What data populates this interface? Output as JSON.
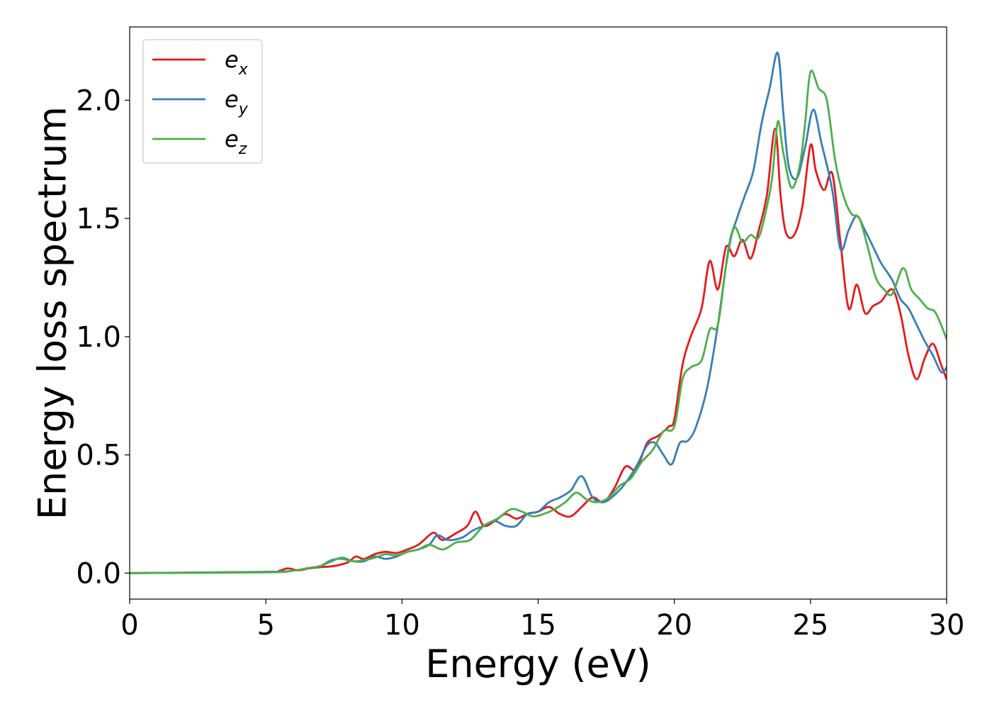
{
  "chart_data": {
    "type": "line",
    "xlabel": "Energy (eV)",
    "ylabel": "Energy loss spectrum",
    "xlim": [
      0,
      30
    ],
    "ylim": [
      -0.11,
      2.31
    ],
    "xticks": [
      0,
      5,
      10,
      15,
      20,
      25,
      30
    ],
    "xtick_labels": [
      "0",
      "5",
      "10",
      "15",
      "20",
      "25",
      "30"
    ],
    "yticks": [
      0.0,
      0.5,
      1.0,
      1.5,
      2.0
    ],
    "ytick_labels": [
      "0.0",
      "0.5",
      "1.0",
      "1.5",
      "2.0"
    ],
    "grid": false,
    "legend_position": "top-left",
    "series": [
      {
        "name": "e_x",
        "label_base": "e",
        "label_sub": "x",
        "color": "#e41a1c",
        "x": [
          0,
          5,
          5.5,
          5.8,
          6.2,
          6.6,
          7,
          7.5,
          8,
          8.3,
          8.6,
          9,
          9.4,
          9.8,
          10.2,
          10.6,
          11,
          11.2,
          11.5,
          12,
          12.4,
          12.7,
          13,
          13.4,
          13.8,
          14.2,
          14.6,
          15,
          15.4,
          15.8,
          16.2,
          16.6,
          17,
          17.4,
          17.8,
          18.2,
          18.6,
          19,
          19.4,
          19.8,
          20,
          20.3,
          20.6,
          21,
          21.3,
          21.6,
          21.9,
          22.2,
          22.5,
          22.8,
          23.1,
          23.4,
          23.7,
          23.9,
          24.1,
          24.4,
          24.7,
          25,
          25.2,
          25.5,
          25.8,
          26.1,
          26.4,
          26.7,
          27,
          27.3,
          27.6,
          28,
          28.3,
          28.6,
          28.9,
          29.2,
          29.5,
          29.8,
          30
        ],
        "y": [
          0,
          0.005,
          0.01,
          0.02,
          0.012,
          0.02,
          0.025,
          0.03,
          0.045,
          0.07,
          0.06,
          0.08,
          0.09,
          0.085,
          0.1,
          0.12,
          0.16,
          0.17,
          0.14,
          0.17,
          0.2,
          0.26,
          0.2,
          0.22,
          0.25,
          0.23,
          0.25,
          0.26,
          0.28,
          0.25,
          0.24,
          0.28,
          0.32,
          0.3,
          0.36,
          0.45,
          0.44,
          0.55,
          0.58,
          0.62,
          0.65,
          0.88,
          1.0,
          1.12,
          1.32,
          1.2,
          1.38,
          1.34,
          1.41,
          1.33,
          1.45,
          1.6,
          1.88,
          1.6,
          1.44,
          1.43,
          1.55,
          1.81,
          1.7,
          1.62,
          1.69,
          1.4,
          1.12,
          1.22,
          1.1,
          1.13,
          1.15,
          1.2,
          1.1,
          0.92,
          0.82,
          0.91,
          0.97,
          0.88,
          0.82
        ]
      },
      {
        "name": "e_y",
        "label_base": "e",
        "label_sub": "y",
        "color": "#377eb8",
        "x": [
          0,
          5,
          6,
          6.5,
          7,
          7.4,
          7.8,
          8.2,
          8.6,
          9,
          9.4,
          9.8,
          10.2,
          10.6,
          11,
          11.3,
          11.7,
          12.2,
          12.6,
          13,
          13.4,
          13.8,
          14.2,
          14.6,
          15,
          15.4,
          15.8,
          16.2,
          16.6,
          17,
          17.4,
          17.8,
          18.2,
          18.6,
          19,
          19.3,
          19.6,
          19.9,
          20.2,
          20.5,
          20.8,
          21.2,
          21.6,
          22,
          22.3,
          22.6,
          22.9,
          23.2,
          23.5,
          23.8,
          24,
          24.2,
          24.5,
          24.8,
          25.1,
          25.4,
          25.8,
          26.1,
          26.4,
          26.7,
          27,
          27.3,
          27.6,
          28,
          28.3,
          28.6,
          28.9,
          29.2,
          29.5,
          29.8,
          30
        ],
        "y": [
          0,
          0.005,
          0.01,
          0.02,
          0.03,
          0.05,
          0.065,
          0.05,
          0.05,
          0.07,
          0.06,
          0.07,
          0.09,
          0.1,
          0.12,
          0.16,
          0.14,
          0.15,
          0.18,
          0.2,
          0.22,
          0.2,
          0.2,
          0.25,
          0.26,
          0.3,
          0.32,
          0.35,
          0.41,
          0.32,
          0.3,
          0.33,
          0.38,
          0.45,
          0.54,
          0.55,
          0.5,
          0.46,
          0.55,
          0.56,
          0.62,
          0.78,
          1.05,
          1.38,
          1.5,
          1.6,
          1.7,
          1.9,
          2.05,
          2.2,
          1.95,
          1.72,
          1.67,
          1.8,
          1.96,
          1.82,
          1.62,
          1.37,
          1.45,
          1.51,
          1.45,
          1.38,
          1.31,
          1.24,
          1.16,
          1.12,
          1.05,
          0.98,
          0.92,
          0.85,
          0.87
        ]
      },
      {
        "name": "e_z",
        "label_base": "e",
        "label_sub": "z",
        "color": "#4daf4a",
        "x": [
          0,
          5,
          6,
          6.5,
          7,
          7.4,
          7.8,
          8.2,
          8.6,
          9,
          9.4,
          9.8,
          10.2,
          10.6,
          11,
          11.5,
          12,
          12.5,
          13,
          13.5,
          14,
          14.4,
          14.8,
          15.2,
          15.6,
          16,
          16.4,
          16.8,
          17.2,
          17.6,
          18,
          18.4,
          18.8,
          19.2,
          19.6,
          20,
          20.3,
          20.6,
          21,
          21.3,
          21.6,
          21.9,
          22.2,
          22.5,
          22.8,
          23.1,
          23.4,
          23.6,
          23.8,
          24,
          24.3,
          24.6,
          24.8,
          25,
          25.3,
          25.6,
          25.9,
          26.2,
          26.5,
          26.8,
          27.1,
          27.4,
          27.7,
          28,
          28.4,
          28.7,
          29,
          29.3,
          29.6,
          30
        ],
        "y": [
          0,
          0.003,
          0.01,
          0.02,
          0.03,
          0.055,
          0.06,
          0.05,
          0.055,
          0.065,
          0.08,
          0.075,
          0.09,
          0.1,
          0.12,
          0.1,
          0.13,
          0.14,
          0.2,
          0.23,
          0.27,
          0.26,
          0.24,
          0.25,
          0.27,
          0.3,
          0.34,
          0.31,
          0.3,
          0.32,
          0.37,
          0.4,
          0.47,
          0.52,
          0.6,
          0.62,
          0.82,
          0.87,
          0.9,
          1.03,
          1.05,
          1.3,
          1.46,
          1.4,
          1.43,
          1.42,
          1.55,
          1.68,
          1.91,
          1.78,
          1.63,
          1.72,
          1.9,
          2.12,
          2.05,
          2.0,
          1.75,
          1.6,
          1.52,
          1.5,
          1.38,
          1.25,
          1.2,
          1.18,
          1.29,
          1.2,
          1.16,
          1.12,
          1.1,
          0.99
        ]
      }
    ]
  }
}
